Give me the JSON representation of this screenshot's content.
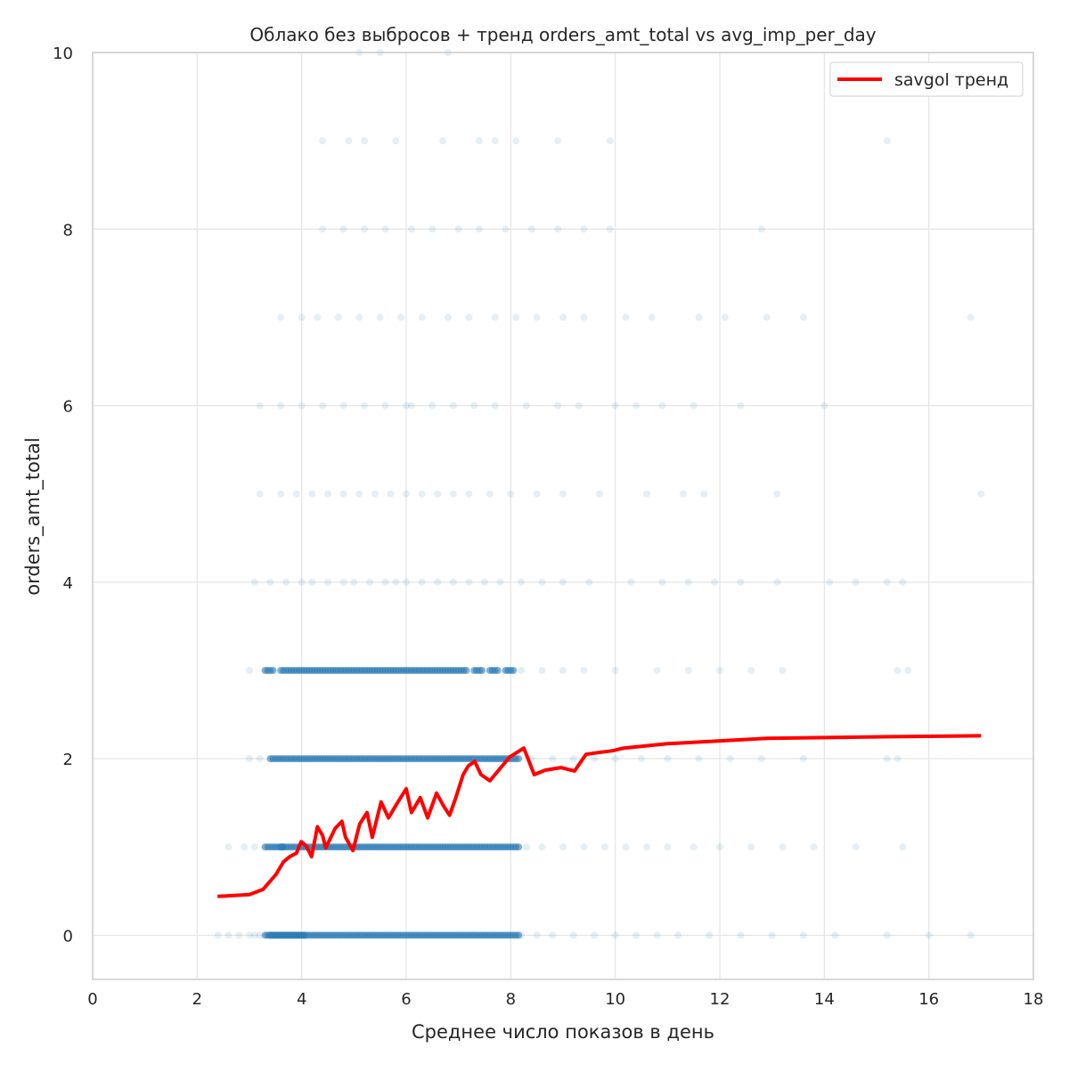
{
  "chart_data": {
    "type": "scatter",
    "title": "Облако без выбросов + тренд orders_amt_total vs avg_imp_per_day",
    "xlabel": "Среднее число показов в день",
    "ylabel": "orders_amt_total",
    "xlim": [
      0,
      18
    ],
    "ylim": [
      -0.5,
      10
    ],
    "xticks": [
      0,
      2,
      4,
      6,
      8,
      10,
      12,
      14,
      16,
      18
    ],
    "yticks": [
      0,
      2,
      4,
      6,
      8,
      10
    ],
    "grid": true,
    "legend": {
      "position": "top-right",
      "entries": [
        "savgol тренд"
      ]
    },
    "colors": {
      "points": "#2c7bb6",
      "trend": "#ff0000",
      "grid": "#e5e5e5",
      "axes": "#cccccc"
    },
    "scatter": [
      {
        "y": 0,
        "x": [
          2.4,
          2.6,
          2.8,
          3.0,
          3.1,
          3.2,
          3.3,
          3.4,
          3.5,
          3.6,
          3.7,
          3.8,
          3.9,
          4.0,
          4.2,
          4.4,
          4.6,
          4.8,
          5.0,
          5.2,
          5.4,
          5.6,
          5.8,
          6.0,
          6.2,
          6.4,
          6.6,
          6.8,
          7.0,
          7.2,
          7.4,
          7.6,
          7.8,
          8.0,
          8.2,
          8.5,
          8.8,
          9.2,
          9.6,
          10.0,
          10.4,
          10.8,
          11.2,
          11.8,
          12.4,
          13.0,
          13.6,
          14.2,
          15.2,
          16.0,
          16.8
        ]
      },
      {
        "y": 1,
        "x": [
          2.6,
          2.9,
          3.1,
          3.3,
          3.5,
          3.6,
          3.8,
          4.0,
          4.2,
          4.4,
          4.6,
          4.8,
          5.0,
          5.2,
          5.4,
          5.6,
          5.8,
          6.0,
          6.2,
          6.4,
          6.6,
          6.8,
          7.0,
          7.2,
          7.4,
          7.6,
          7.8,
          8.0,
          8.3,
          8.6,
          9.0,
          9.4,
          9.8,
          10.2,
          10.6,
          11.0,
          11.5,
          12.0,
          12.6,
          13.2,
          13.8,
          14.6,
          15.5
        ]
      },
      {
        "y": 2,
        "x": [
          3.0,
          3.2,
          3.4,
          3.6,
          3.8,
          4.0,
          4.2,
          4.4,
          4.6,
          4.8,
          5.0,
          5.2,
          5.4,
          5.6,
          5.8,
          6.0,
          6.2,
          6.4,
          6.6,
          6.8,
          7.0,
          7.2,
          7.4,
          7.6,
          7.8,
          8.0,
          8.4,
          8.8,
          9.2,
          9.6,
          10.0,
          10.5,
          11.0,
          11.6,
          12.2,
          12.8,
          13.6,
          15.2,
          15.4
        ]
      },
      {
        "y": 3,
        "x": [
          3.0,
          3.3,
          3.6,
          3.8,
          4.0,
          4.2,
          4.4,
          4.6,
          4.8,
          5.0,
          5.2,
          5.4,
          5.6,
          5.8,
          6.0,
          6.2,
          6.4,
          6.6,
          6.8,
          7.0,
          7.3,
          7.6,
          7.9,
          8.2,
          8.6,
          9.0,
          9.4,
          10.0,
          10.8,
          11.4,
          12.0,
          12.6,
          13.2,
          15.4,
          15.6
        ]
      },
      {
        "y": 4,
        "x": [
          3.1,
          3.4,
          3.7,
          4.0,
          4.2,
          4.5,
          4.8,
          5.0,
          5.3,
          5.6,
          5.8,
          6.0,
          6.3,
          6.6,
          6.9,
          7.2,
          7.5,
          7.8,
          8.2,
          8.6,
          9.0,
          9.5,
          10.3,
          10.9,
          11.4,
          11.9,
          12.4,
          13.1,
          14.1,
          14.6,
          15.2,
          15.5
        ]
      },
      {
        "y": 5,
        "x": [
          3.2,
          3.6,
          3.9,
          4.2,
          4.5,
          4.8,
          5.1,
          5.4,
          5.7,
          6.0,
          6.3,
          6.6,
          6.9,
          7.2,
          7.6,
          8.0,
          8.5,
          9.0,
          9.7,
          10.6,
          11.3,
          11.7,
          13.1,
          17.0
        ]
      },
      {
        "y": 6,
        "x": [
          3.2,
          3.6,
          4.0,
          4.4,
          4.8,
          5.2,
          5.6,
          6.0,
          6.1,
          6.5,
          6.9,
          7.3,
          7.7,
          8.3,
          8.9,
          9.3,
          10.0,
          10.4,
          10.9,
          11.5,
          12.4,
          14.0
        ]
      },
      {
        "y": 7,
        "x": [
          3.6,
          4.0,
          4.3,
          4.7,
          5.1,
          5.5,
          5.9,
          6.3,
          6.8,
          7.2,
          7.7,
          8.1,
          8.5,
          9.0,
          9.4,
          10.2,
          10.7,
          11.6,
          12.1,
          12.9,
          13.6,
          16.8
        ]
      },
      {
        "y": 8,
        "x": [
          4.4,
          4.8,
          5.2,
          5.6,
          6.1,
          6.5,
          7.0,
          7.4,
          7.9,
          8.4,
          8.9,
          9.4,
          9.9,
          12.8
        ]
      },
      {
        "y": 9,
        "x": [
          4.4,
          4.9,
          5.2,
          5.8,
          6.7,
          7.4,
          7.7,
          8.1,
          8.9,
          9.9,
          15.2
        ]
      },
      {
        "y": 10,
        "x": [
          5.1,
          5.5,
          6.8
        ]
      }
    ],
    "trend": {
      "name": "savgol тренд",
      "x": [
        2.39,
        3.0,
        3.26,
        3.51,
        3.65,
        3.77,
        3.9,
        3.99,
        4.09,
        4.19,
        4.3,
        4.4,
        4.46,
        4.64,
        4.77,
        4.84,
        4.98,
        5.11,
        5.25,
        5.35,
        5.52,
        5.66,
        5.81,
        6.0,
        6.1,
        6.27,
        6.41,
        6.58,
        6.72,
        6.83,
        6.95,
        7.09,
        7.19,
        7.31,
        7.43,
        7.6,
        7.77,
        7.98,
        8.25,
        8.45,
        8.66,
        8.96,
        9.22,
        9.44,
        9.68,
        9.95,
        10.16,
        11.0,
        12.9,
        15.3,
        17.0
      ],
      "y": [
        0.44,
        0.46,
        0.52,
        0.69,
        0.83,
        0.89,
        0.93,
        1.06,
        1.01,
        0.89,
        1.23,
        1.13,
        0.99,
        1.21,
        1.29,
        1.11,
        0.96,
        1.26,
        1.39,
        1.11,
        1.51,
        1.33,
        1.48,
        1.66,
        1.39,
        1.56,
        1.33,
        1.61,
        1.46,
        1.36,
        1.56,
        1.82,
        1.92,
        1.97,
        1.82,
        1.75,
        1.87,
        2.02,
        2.12,
        1.82,
        1.87,
        1.9,
        1.86,
        2.05,
        2.07,
        2.09,
        2.12,
        2.17,
        2.23,
        2.25,
        2.26
      ]
    }
  }
}
